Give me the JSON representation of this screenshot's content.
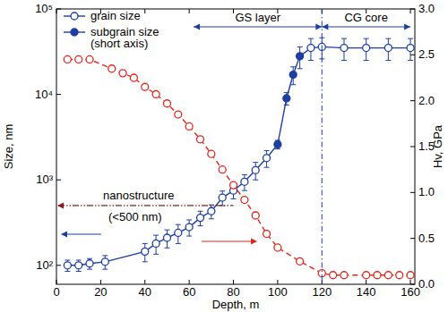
{
  "chart_data": {
    "type": "line",
    "xlabel": "Depth, m",
    "ylabel": "Size, nm",
    "y2label": "Hv, GPa",
    "log": "y",
    "grid": false,
    "legend": "upper left",
    "xlim": [
      0,
      162
    ],
    "xticks": [
      0,
      20,
      40,
      60,
      80,
      100,
      120,
      140,
      160
    ],
    "ylim": [
      60,
      100000
    ],
    "yticks": [
      {
        "value": 100,
        "label": "10²"
      },
      {
        "value": 1000,
        "label": "10³"
      },
      {
        "value": 10000,
        "label": "10⁴"
      },
      {
        "value": 100000,
        "label": "10⁵"
      }
    ],
    "y2lim": [
      0,
      3
    ],
    "y2ticks": [
      {
        "value": 0,
        "label": "0.0"
      },
      0.5,
      {
        "value": 1,
        "label": "1.0"
      },
      1.5,
      {
        "value": 2,
        "label": "2.0"
      },
      2.5,
      {
        "value": 3,
        "label": "3.0"
      }
    ],
    "series": [
      {
        "name": "grain size",
        "color": "#1c3fa0",
        "marker": "circle",
        "line_style": "solid",
        "x": [
          5,
          10,
          15,
          22,
          40,
          45,
          50,
          55,
          60,
          65,
          70,
          75,
          80,
          85,
          90,
          95,
          115,
          120,
          130,
          140,
          150,
          160
        ],
        "values": [
          100,
          100,
          105,
          110,
          145,
          180,
          210,
          240,
          280,
          360,
          430,
          620,
          750,
          950,
          1300,
          1800,
          35000,
          36000,
          35000,
          35000,
          35000,
          35000
        ],
        "errors": [
          15,
          15,
          15,
          20,
          35,
          45,
          50,
          60,
          60,
          70,
          80,
          120,
          150,
          200,
          300,
          400,
          10000,
          10000,
          10000,
          10000,
          10000,
          10000
        ]
      },
      {
        "name": "subgrain size (short axis)",
        "color": "#1c3fa0",
        "marker": "filled_circle",
        "line_style": "solid",
        "x": [
          100,
          104,
          107,
          110
        ],
        "values": [
          2600,
          9000,
          17000,
          28000
        ],
        "errors": [
          300,
          1500,
          4000,
          8000
        ]
      },
      {
        "color": "#e3261b",
        "marker": "circle",
        "line_style": "dashed",
        "axis": "y2",
        "x": [
          5,
          10,
          15,
          25,
          30,
          35,
          40,
          45,
          50,
          55,
          60,
          65,
          70,
          75,
          80,
          85,
          90,
          95,
          100,
          110,
          120,
          125,
          130,
          140,
          145,
          150,
          155,
          160
        ],
        "values": [
          2.45,
          2.45,
          2.45,
          2.35,
          2.3,
          2.25,
          2.15,
          2.07,
          1.97,
          1.85,
          1.72,
          1.58,
          1.42,
          1.25,
          1.08,
          0.92,
          0.75,
          0.55,
          0.4,
          0.25,
          0.12,
          0.1,
          0.1,
          0.1,
          0.1,
          0.1,
          0.1,
          0.1
        ]
      }
    ],
    "regions": [
      {
        "label": "GS layer",
        "x": [
          62,
          120
        ]
      },
      {
        "label": "CG core",
        "x": [
          120,
          160
        ]
      }
    ],
    "nanostructure": {
      "lines": [
        "nanostructure",
        "(<500 nm)"
      ],
      "y": 500,
      "x": [
        0,
        80
      ]
    }
  }
}
